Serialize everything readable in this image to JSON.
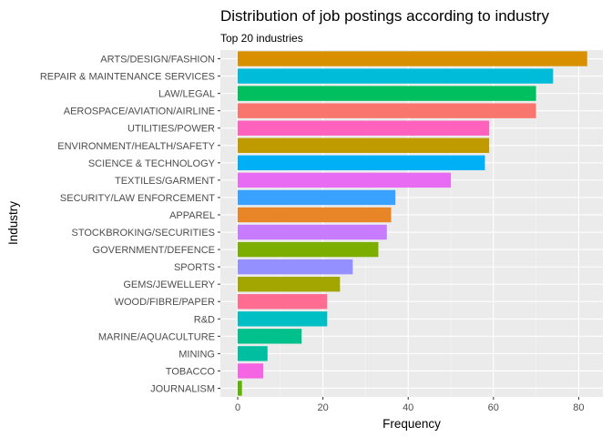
{
  "chart_data": {
    "type": "bar",
    "orientation": "horizontal",
    "title": "Distribution of job postings according to industry",
    "subtitle": "Top 20 industries",
    "xlabel": "Frequency",
    "ylabel": "Industry",
    "xlim": [
      0,
      82
    ],
    "xticks": [
      0,
      20,
      40,
      60,
      80
    ],
    "grid": true,
    "legend": "none",
    "categories": [
      "ARTS/DESIGN/FASHION",
      "REPAIR & MAINTENANCE SERVICES",
      "LAW/LEGAL",
      "AEROSPACE/AVIATION/AIRLINE",
      "UTILITIES/POWER",
      "ENVIRONMENT/HEALTH/SAFETY",
      "SCIENCE & TECHNOLOGY",
      "TEXTILES/GARMENT",
      "SECURITY/LAW ENFORCEMENT",
      "APPAREL",
      "STOCKBROKING/SECURITIES",
      "GOVERNMENT/DEFENCE",
      "SPORTS",
      "GEMS/JEWELLERY",
      "WOOD/FIBRE/PAPER",
      "R&D",
      "MARINE/AQUACULTURE",
      "MINING",
      "TOBACCO",
      "JOURNALISM"
    ],
    "values": [
      82,
      74,
      70,
      70,
      59,
      59,
      58,
      50,
      37,
      36,
      35,
      33,
      27,
      24,
      21,
      21,
      15,
      7,
      6,
      1
    ],
    "colors": [
      "#D89000",
      "#00BCD8",
      "#00BF5E",
      "#F8766D",
      "#FF62BC",
      "#C09B00",
      "#00B0F6",
      "#E76BF3",
      "#39A1FF",
      "#E88526",
      "#C77CFF",
      "#7CAE00",
      "#9590FF",
      "#A3A500",
      "#FF6C91",
      "#00BFC4",
      "#00C08B",
      "#00BFA1",
      "#F564E3",
      "#5EB300"
    ]
  }
}
